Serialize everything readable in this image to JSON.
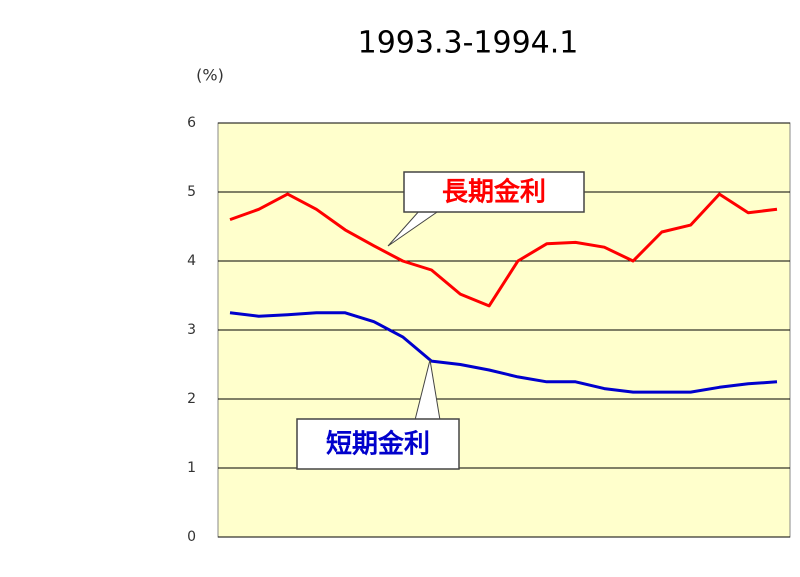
{
  "chart_data": {
    "type": "line",
    "title": "1993.3-1994.1",
    "y_label": "(%)",
    "ylim": [
      0,
      6
    ],
    "yticks": [
      0,
      1,
      2,
      3,
      4,
      5,
      6
    ],
    "grid": true,
    "plot_background": "#ffffcc",
    "series": [
      {
        "name": "長期金利",
        "color": "#ff0000",
        "values": [
          4.6,
          4.75,
          4.97,
          4.75,
          4.45,
          4.22,
          4.0,
          3.87,
          3.52,
          3.35,
          4.0,
          4.25,
          4.27,
          4.2,
          4.0,
          4.42,
          4.52,
          4.97,
          4.7,
          4.75
        ]
      },
      {
        "name": "短期金利",
        "color": "#0000cc",
        "values": [
          3.25,
          3.2,
          3.22,
          3.25,
          3.25,
          3.12,
          2.9,
          2.55,
          2.5,
          2.42,
          2.32,
          2.25,
          2.25,
          2.15,
          2.1,
          2.1,
          2.1,
          2.17,
          2.22,
          2.25
        ]
      }
    ]
  }
}
